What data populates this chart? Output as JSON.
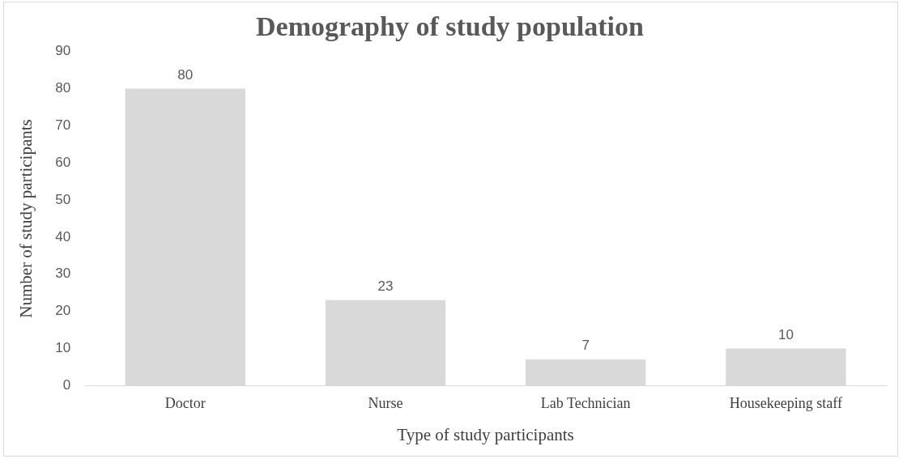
{
  "chart_data": {
    "type": "bar",
    "title": "Demography of study population",
    "xlabel": "Type of study participants",
    "ylabel": "Number of study participants",
    "categories": [
      "Doctor",
      "Nurse",
      "Lab Technician",
      "Housekeeping staff"
    ],
    "values": [
      80,
      23,
      7,
      10
    ],
    "color": "#d9d9d9",
    "ylim": [
      0,
      90
    ],
    "yticks": [
      0,
      10,
      20,
      30,
      40,
      50,
      60,
      70,
      80,
      90
    ],
    "grid": false,
    "legend": false,
    "data_labels": true
  }
}
